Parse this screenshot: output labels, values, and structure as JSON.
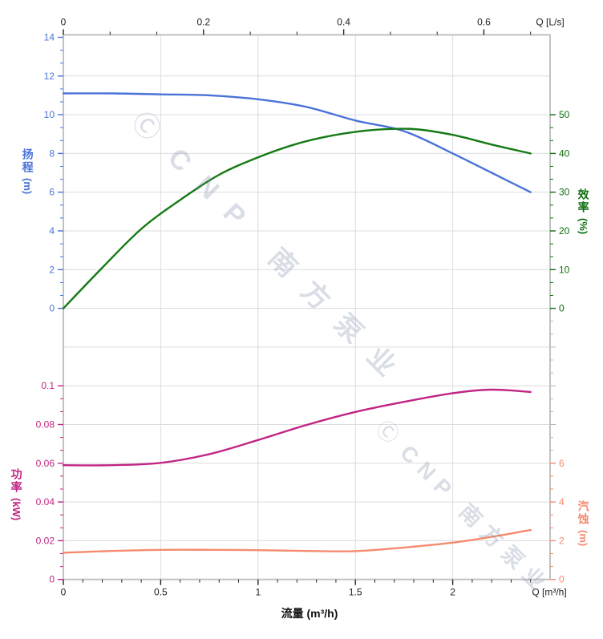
{
  "watermark": {
    "logo_glyph": "Ⓒ",
    "text": "CNP 南方泵业"
  },
  "chart_data": {
    "type": "line",
    "title": "",
    "x_top": {
      "unit_label": "Q [L/s]",
      "tick_labels": [
        "0",
        "0.2",
        "0.4",
        "0.6"
      ],
      "tick_values_ls": [
        0,
        0.2,
        0.4,
        0.6
      ],
      "range_ls": [
        0,
        0.694
      ],
      "minor_subdivisions": 3
    },
    "x_bottom": {
      "unit_label": "Q [m³/h]",
      "axis_title": "流量 (m³/h)",
      "tick_labels": [
        "0",
        "0.5",
        "1",
        "1.5",
        "2"
      ],
      "tick_values": [
        0,
        0.5,
        1,
        1.5,
        2
      ],
      "range": [
        0,
        2.5
      ],
      "minor_step": 0.1
    },
    "y_axes": {
      "head": {
        "title": "扬程",
        "unit": "(m)",
        "side": "left",
        "color": "#4a73d8",
        "tick_labels": [
          "14",
          "12",
          "10",
          "8",
          "6",
          "4",
          "2",
          "0"
        ],
        "range": [
          0,
          14
        ]
      },
      "efficiency": {
        "title": "效率",
        "unit": "(%)",
        "side": "right",
        "color": "#0e6e0e",
        "tick_labels": [
          "50",
          "40",
          "30",
          "20",
          "10",
          "0"
        ],
        "range": [
          0,
          50
        ]
      },
      "power": {
        "title": "功率",
        "unit": "(kW)",
        "side": "left",
        "color": "#c02585",
        "tick_labels": [
          "0.1",
          "0.08",
          "0.06",
          "0.04",
          "0.02",
          "0"
        ],
        "range": [
          0,
          0.1
        ]
      },
      "npsh": {
        "title": "汽蚀",
        "unit": "(m)",
        "side": "right",
        "color": "#f58a70",
        "tick_labels": [
          "6",
          "4",
          "2",
          "0"
        ],
        "range": [
          0,
          6
        ]
      }
    },
    "grid": {
      "on": true,
      "h_rows": 14,
      "v_step_m3h": 0.5
    },
    "series": [
      {
        "name": "head_curve",
        "y_axis": "head",
        "color": "#4a73d8",
        "points": [
          [
            0,
            11.1
          ],
          [
            0.25,
            11.1
          ],
          [
            0.5,
            11.05
          ],
          [
            0.75,
            11.0
          ],
          [
            1.0,
            10.8
          ],
          [
            1.25,
            10.4
          ],
          [
            1.5,
            9.7
          ],
          [
            1.75,
            9.15
          ],
          [
            2.0,
            8.0
          ],
          [
            2.2,
            7.0
          ],
          [
            2.4,
            6.0
          ]
        ]
      },
      {
        "name": "efficiency_curve",
        "y_axis": "efficiency",
        "color": "#157a15",
        "points": [
          [
            0,
            0
          ],
          [
            0.2,
            10.5
          ],
          [
            0.4,
            20.5
          ],
          [
            0.6,
            28
          ],
          [
            0.8,
            34.5
          ],
          [
            1.0,
            39
          ],
          [
            1.2,
            42.5
          ],
          [
            1.4,
            44.8
          ],
          [
            1.6,
            46.1
          ],
          [
            1.8,
            46.3
          ],
          [
            2.0,
            44.8
          ],
          [
            2.2,
            42.3
          ],
          [
            2.4,
            40
          ]
        ]
      },
      {
        "name": "power_curve",
        "y_axis": "power",
        "color": "#c02585",
        "points": [
          [
            0,
            0.059
          ],
          [
            0.25,
            0.059
          ],
          [
            0.5,
            0.0602
          ],
          [
            0.75,
            0.0647
          ],
          [
            1.0,
            0.072
          ],
          [
            1.25,
            0.0798
          ],
          [
            1.5,
            0.0865
          ],
          [
            1.75,
            0.0917
          ],
          [
            2.0,
            0.0962
          ],
          [
            2.2,
            0.098
          ],
          [
            2.4,
            0.0968
          ]
        ]
      },
      {
        "name": "npsh_curve",
        "y_axis": "npsh",
        "color": "#f58a70",
        "points": [
          [
            0,
            1.38
          ],
          [
            0.25,
            1.47
          ],
          [
            0.5,
            1.53
          ],
          [
            0.75,
            1.53
          ],
          [
            1.0,
            1.51
          ],
          [
            1.25,
            1.47
          ],
          [
            1.5,
            1.46
          ],
          [
            1.75,
            1.65
          ],
          [
            2.0,
            1.9
          ],
          [
            2.2,
            2.2
          ],
          [
            2.4,
            2.55
          ]
        ]
      }
    ]
  }
}
